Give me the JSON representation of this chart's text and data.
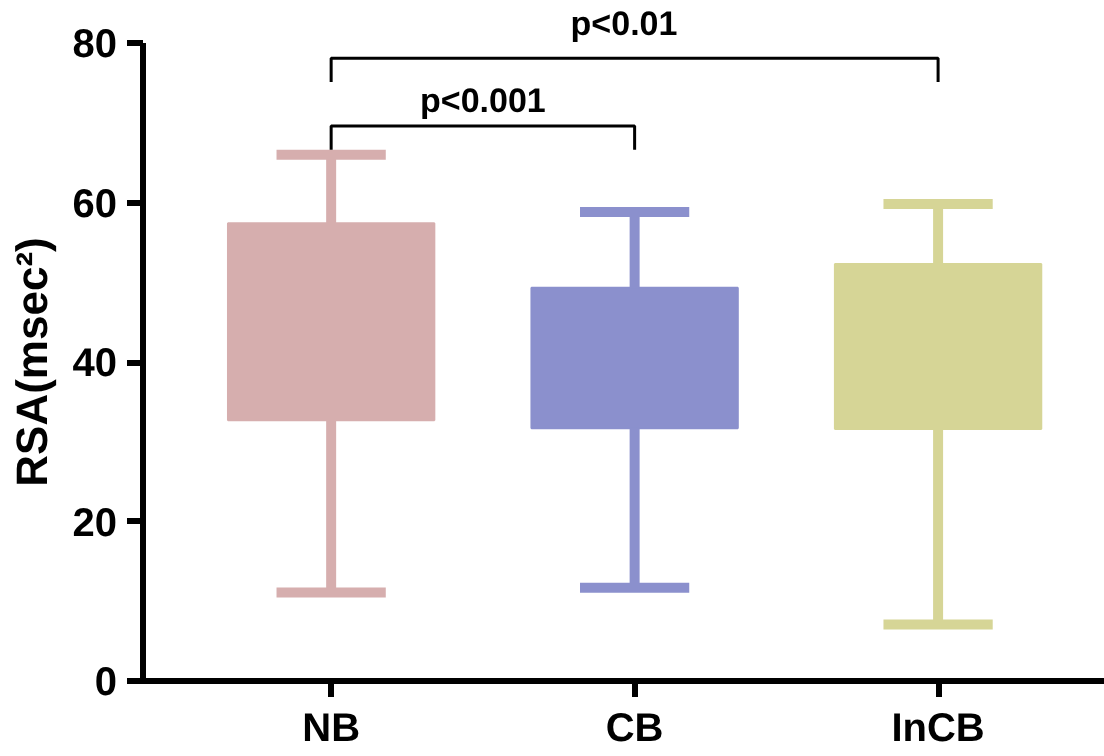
{
  "chart_data": {
    "type": "box",
    "ylabel": "RSA(msec²)",
    "categories": [
      "NB",
      "CB",
      "InCB"
    ],
    "series": [
      {
        "boxes": [
          {
            "low": 11.1,
            "q1": 32.7,
            "q3": 57.4,
            "high": 66
          },
          {
            "low": 11.7,
            "q1": 31.7,
            "q3": 49.3,
            "high": 58.8
          },
          {
            "low": 7.1,
            "q1": 31.6,
            "q3": 52.3,
            "high": 59.8
          }
        ],
        "colors": [
          "#d6aeae",
          "#8b90cd",
          "#d6d596"
        ]
      }
    ],
    "ylim": [
      0,
      80
    ],
    "yticks": [
      0,
      20,
      40,
      60,
      80
    ],
    "grid": false,
    "annotations": [
      "p<0.001",
      "p<0.01"
    ]
  }
}
